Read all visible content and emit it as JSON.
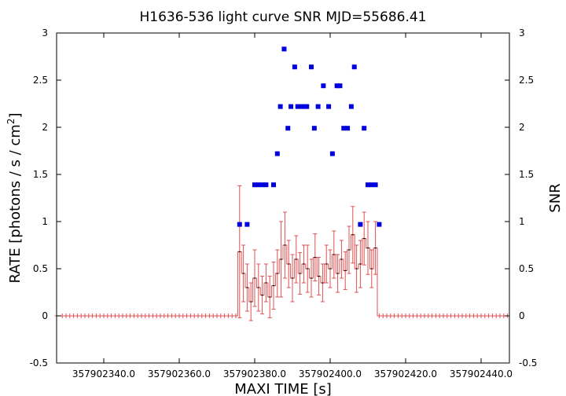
{
  "chart_data": {
    "type": "scatter",
    "title": "H1636-536 light curve  SNR MJD=55686.41",
    "xlabel": "MAXI TIME [s]",
    "ylabel": "RATE [photons / s / cm",
    "ylabel_sup": "2",
    "ylabel_close": "]",
    "y2label": "SNR",
    "xlim": [
      357902327.5,
      357902447.5
    ],
    "ylim": [
      -0.5,
      3
    ],
    "y2lim": [
      -0.5,
      3
    ],
    "xticks": [
      357902340,
      357902360,
      357902380,
      357902400,
      357902420,
      357902440
    ],
    "xtick_labels": [
      "357902340.0",
      "357902360.0",
      "357902380.0",
      "357902400.0",
      "357902420.0",
      "357902440.0"
    ],
    "yticks": [
      -0.5,
      0,
      0.5,
      1,
      1.5,
      2,
      2.5,
      3
    ],
    "ytick_labels": [
      "-0.5",
      "0",
      "0.5",
      "1",
      "1.5",
      "2",
      "2.5",
      "3"
    ],
    "y2ticks": [
      -0.5,
      0,
      0.5,
      1,
      1.5,
      2,
      2.5,
      3
    ],
    "y2tick_labels": [
      "-0.5",
      "0",
      "0.5",
      "1",
      "1.5",
      "2",
      "2.5",
      "3"
    ],
    "grid": false,
    "series": [
      {
        "kind": "errorbar-step",
        "color": "#e05050",
        "x": [
          357902327.5,
          357902329,
          357902330,
          357902331,
          357902332,
          357902333,
          357902334,
          357902335,
          357902336,
          357902337,
          357902338,
          357902339,
          357902340,
          357902341,
          357902342,
          357902343,
          357902344,
          357902345,
          357902346,
          357902347,
          357902348,
          357902349,
          357902350,
          357902351,
          357902352,
          357902353,
          357902354,
          357902355,
          357902356,
          357902357,
          357902358,
          357902359,
          357902360,
          357902361,
          357902362,
          357902363,
          357902364,
          357902365,
          357902366,
          357902367,
          357902368,
          357902369,
          357902370,
          357902371,
          357902372,
          357902373,
          357902374,
          357902375,
          357902376,
          357902377,
          357902378,
          357902379,
          357902380,
          357902381,
          357902382,
          357902383,
          357902384,
          357902385,
          357902386,
          357902387,
          357902388,
          357902389,
          357902390,
          357902391,
          357902392,
          357902393,
          357902394,
          357902395,
          357902396,
          357902397,
          357902398,
          357902399,
          357902400,
          357902401,
          357902402,
          357902403,
          357902404,
          357902405,
          357902406,
          357902407,
          357902408,
          357902409,
          357902410,
          357902411,
          357902412,
          357902413,
          357902414,
          357902415,
          357902416,
          357902417,
          357902418,
          357902419,
          357902420,
          357902421,
          357902422,
          357902423,
          357902424,
          357902425,
          357902426,
          357902427,
          357902428,
          357902429,
          357902430,
          357902431,
          357902432,
          357902433,
          357902434,
          357902435,
          357902436,
          357902437,
          357902438,
          357902439,
          357902440,
          357902441,
          357902442,
          357902443,
          357902444,
          357902445,
          357902446,
          357902447
        ],
        "y": [
          0,
          0,
          0,
          0,
          0,
          0,
          0,
          0,
          0,
          0,
          0,
          0,
          0,
          0,
          0,
          0,
          0,
          0,
          0,
          0,
          0,
          0,
          0,
          0,
          0,
          0,
          0,
          0,
          0,
          0,
          0,
          0,
          0,
          0,
          0,
          0,
          0,
          0,
          0,
          0,
          0,
          0,
          0,
          0,
          0,
          0,
          0,
          0,
          0.68,
          0.45,
          0.3,
          0.15,
          0.4,
          0.3,
          0.22,
          0.35,
          0.2,
          0.32,
          0.45,
          0.6,
          0.75,
          0.55,
          0.4,
          0.6,
          0.45,
          0.55,
          0.5,
          0.4,
          0.62,
          0.42,
          0.35,
          0.55,
          0.5,
          0.65,
          0.45,
          0.6,
          0.48,
          0.7,
          0.86,
          0.5,
          0.55,
          0.82,
          0.72,
          0.5,
          0.72,
          0,
          0,
          0,
          0,
          0,
          0,
          0,
          0,
          0,
          0,
          0,
          0,
          0,
          0,
          0,
          0,
          0,
          0,
          0,
          0,
          0,
          0,
          0,
          0,
          0,
          0,
          0,
          0,
          0,
          0,
          0,
          0,
          0,
          0,
          0
        ],
        "yerr": [
          0,
          0,
          0,
          0,
          0,
          0,
          0,
          0,
          0,
          0,
          0,
          0,
          0,
          0,
          0,
          0,
          0,
          0,
          0,
          0,
          0,
          0,
          0,
          0,
          0,
          0,
          0,
          0,
          0,
          0,
          0,
          0,
          0,
          0,
          0,
          0,
          0,
          0,
          0,
          0,
          0,
          0,
          0,
          0,
          0,
          0,
          0,
          0,
          0.7,
          0.3,
          0.25,
          0.2,
          0.3,
          0.25,
          0.2,
          0.2,
          0.22,
          0.25,
          0.25,
          0.4,
          0.35,
          0.25,
          0.25,
          0.25,
          0.22,
          0.2,
          0.25,
          0.2,
          0.25,
          0.2,
          0.2,
          0.2,
          0.2,
          0.25,
          0.2,
          0.2,
          0.2,
          0.25,
          0.3,
          0.25,
          0.25,
          0.28,
          0.28,
          0.2,
          0.28,
          0,
          0,
          0,
          0,
          0,
          0,
          0,
          0,
          0,
          0,
          0,
          0,
          0,
          0,
          0,
          0,
          0,
          0,
          0,
          0,
          0,
          0,
          0,
          0,
          0,
          0,
          0,
          0,
          0,
          0,
          0,
          0,
          0,
          0,
          0
        ]
      },
      {
        "kind": "squares",
        "color": "#0000dd",
        "x": [
          357902376,
          357902378,
          357902380,
          357902381,
          357902382,
          357902383,
          357902385,
          357902386,
          357902386.8,
          357902387.8,
          357902388.8,
          357902389.6,
          357902390.6,
          357902391.4,
          357902392.2,
          357902393,
          357902393.8,
          357902395,
          357902395.8,
          357902396.8,
          357902398.2,
          357902399.6,
          357902400.6,
          357902401.8,
          357902402.6,
          357902403.6,
          357902404.6,
          357902405.6,
          357902406.4,
          357902408,
          357902409,
          357902410,
          357902411,
          357902412,
          357902413
        ],
        "y": [
          0.97,
          0.97,
          1.39,
          1.39,
          1.39,
          1.39,
          1.39,
          1.72,
          2.22,
          2.83,
          1.99,
          2.22,
          2.64,
          2.22,
          2.22,
          2.22,
          2.22,
          2.64,
          1.99,
          2.22,
          2.44,
          2.22,
          1.72,
          2.44,
          2.44,
          1.99,
          1.99,
          2.22,
          2.64,
          0.97,
          1.99,
          1.39,
          1.39,
          1.39,
          0.97
        ]
      }
    ]
  }
}
